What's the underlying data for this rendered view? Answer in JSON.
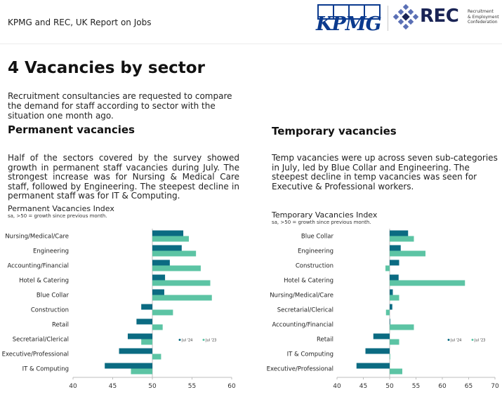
{
  "header": {
    "title": "KPMG and REC, UK Report on Jobs"
  },
  "logos": {
    "kpmg_text": "KPMG",
    "rec_text": "REC",
    "rec_sub": [
      "Recruitment",
      "& Employment",
      "Confederation"
    ],
    "kpmg_color": "#0b3a8e",
    "rec_color": "#1a2455"
  },
  "page_title": "4 Vacancies by sector",
  "intro": "Recruitment consultancies are requested to compare the demand for staff according to sector with the situation one month ago.",
  "permanent": {
    "heading": "Permanent vacancies",
    "text": "Half of the sectors covered by the survey showed growth in permanent staff vacancies during July. The strongest increase was for Nursing & Medical Care staff, followed by Engineering. The steepest decline in permanent staff was for IT & Computing."
  },
  "temporary": {
    "heading": "Temporary vacancies",
    "text": "Temp vacancies were up across seven sub-categories in July, led by Blue Collar and Engineering. The steepest decline in temp vacancies was seen for Executive & Professional workers."
  },
  "colors": {
    "jul24": "#0b6b82",
    "jul23": "#5cc4a4",
    "axis": "#bdbdbd"
  },
  "chart_data": [
    {
      "type": "bar",
      "orientation": "horizontal",
      "title": "Permanent Vacancies Index",
      "subtitle": "sa, >50 = growth since previous month.",
      "baseline": 50,
      "xlim": [
        40,
        60
      ],
      "xticks": [
        40,
        45,
        50,
        55,
        60
      ],
      "categories": [
        "Nursing/Medical/Care",
        "Engineering",
        "Accounting/Financial",
        "Hotel & Catering",
        "Blue Collar",
        "Construction",
        "Retail",
        "Secretarial/Clerical",
        "Executive/Professional",
        "IT & Computing"
      ],
      "series": [
        {
          "name": "Jul '24",
          "values": [
            53.9,
            53.7,
            52.2,
            51.6,
            51.5,
            48.6,
            48.0,
            46.9,
            45.8,
            44.0
          ]
        },
        {
          "name": "Jul '23",
          "values": [
            54.6,
            55.5,
            56.1,
            57.3,
            57.5,
            52.6,
            51.3,
            48.6,
            51.1,
            47.3
          ]
        }
      ]
    },
    {
      "type": "bar",
      "orientation": "horizontal",
      "title": "Temporary Vacancies Index",
      "subtitle": "sa, >50 = growth since previous month.",
      "baseline": 50,
      "xlim": [
        40,
        70
      ],
      "xticks": [
        40,
        45,
        50,
        55,
        60,
        65,
        70
      ],
      "categories": [
        "Blue Collar",
        "Engineering",
        "Construction",
        "Hotel & Catering",
        "Nursing/Medical/Care",
        "Secretarial/Clerical",
        "Accounting/Financial",
        "Retail",
        "IT & Computing",
        "Executive/Professional"
      ],
      "series": [
        {
          "name": "Jul '24",
          "values": [
            53.5,
            52.1,
            51.8,
            51.7,
            50.6,
            50.5,
            50.1,
            46.9,
            45.4,
            43.7
          ]
        },
        {
          "name": "Jul '23",
          "values": [
            54.6,
            56.8,
            49.2,
            64.3,
            51.8,
            49.3,
            54.6,
            51.8,
            50.0,
            52.4
          ]
        }
      ]
    }
  ]
}
